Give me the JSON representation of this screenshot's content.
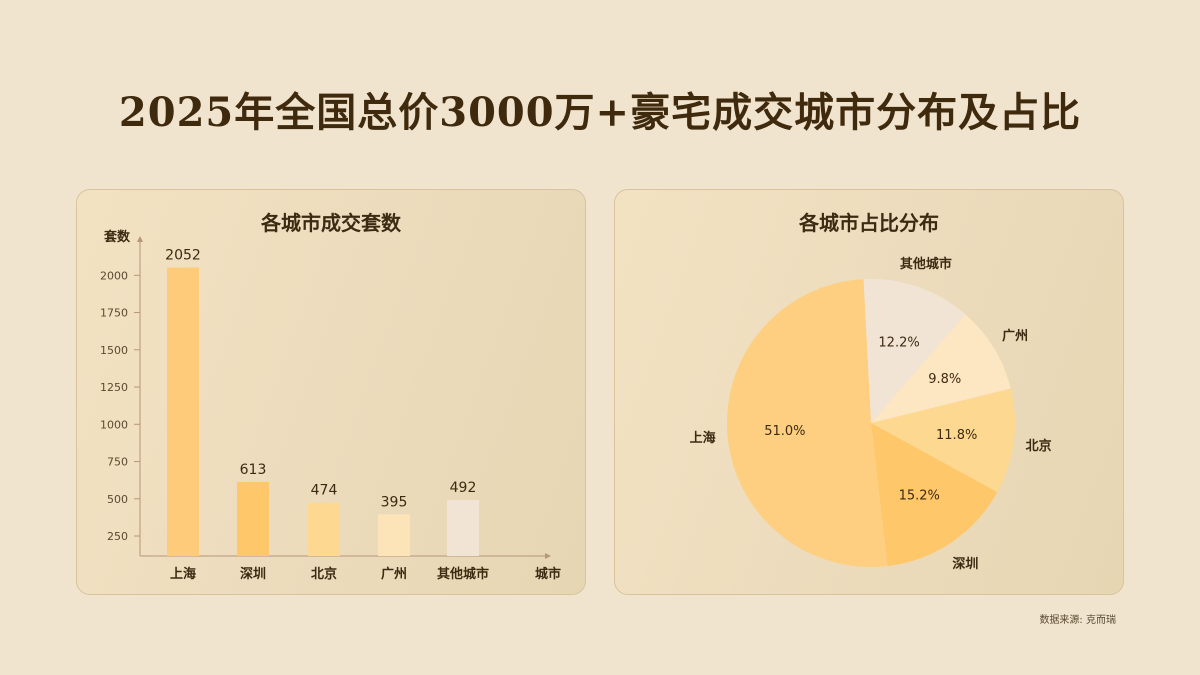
{
  "title": "2025年全国总价3000万+豪宅成交城市分布及占比",
  "source": "数据来源: 克而瑞",
  "chart_data": [
    {
      "type": "bar",
      "title": "各城市成交套数",
      "xlabel": "城市",
      "ylabel": "套数",
      "categories": [
        "上海",
        "深圳",
        "北京",
        "广州",
        "其他城市"
      ],
      "values": [
        2052,
        613,
        474,
        395,
        492
      ],
      "colors": [
        "#fecb7a",
        "#fec76a",
        "#fdd890",
        "#fde4b8",
        "#f1e4d4"
      ],
      "yticks": [
        250,
        500,
        750,
        1000,
        1250,
        1500,
        1750,
        2000
      ],
      "ylim": [
        116,
        2257
      ],
      "grid": false
    },
    {
      "type": "pie",
      "title": "各城市占比分布",
      "labels": [
        "其他城市",
        "广州",
        "北京",
        "深圳",
        "上海"
      ],
      "values": [
        12.2,
        9.8,
        11.8,
        15.2,
        51.0
      ],
      "value_labels": [
        "12.2%",
        "9.8%",
        "11.8%",
        "15.2%",
        "51.0%"
      ],
      "colors": [
        "#f1e4d4",
        "#fde6c2",
        "#fdd890",
        "#fec76a",
        "#fecf80"
      ]
    }
  ]
}
